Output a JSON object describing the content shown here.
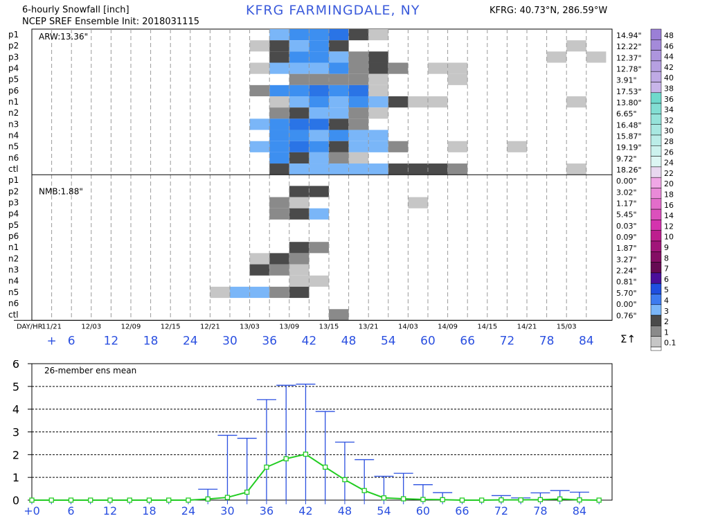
{
  "header": {
    "title_left_1": "6-hourly Snowfall [inch]",
    "title_left_2": "NCEP SREF Ensemble Init: 2018031115",
    "title_center": "KFRG FARMINGDALE, NY",
    "title_right": "KFRG: 40.73°N, 286.59°W"
  },
  "chart_data": [
    {
      "type": "heatmap",
      "title": "6-hourly Snowfall [inch]",
      "groups": [
        {
          "label": "ARW:13.36\"",
          "members": [
            "p1",
            "p2",
            "p3",
            "p4",
            "p5",
            "p6",
            "n1",
            "n2",
            "n3",
            "n4",
            "n5",
            "n6",
            "ctl"
          ]
        },
        {
          "label": "NMB:1.88\"",
          "members": [
            "p1",
            "p2",
            "p3",
            "p4",
            "p5",
            "p6",
            "n1",
            "n2",
            "n3",
            "n4",
            "n5",
            "n6",
            "ctl"
          ]
        }
      ],
      "rows": [
        "p1",
        "p2",
        "p3",
        "p4",
        "p5",
        "p6",
        "n1",
        "n2",
        "n3",
        "n4",
        "n5",
        "n6",
        "ctl",
        "p1",
        "p2",
        "p3",
        "p4",
        "p5",
        "p6",
        "n1",
        "n2",
        "n3",
        "n4",
        "n5",
        "n6",
        "ctl"
      ],
      "row_totals": [
        "14.94\"",
        "12.22\"",
        "12.37\"",
        "12.78\"",
        "3.91\"",
        "17.53\"",
        "13.80\"",
        "6.65\"",
        "16.48\"",
        "15.87\"",
        "19.19\"",
        "9.72\"",
        "18.26\"",
        "0.00\"",
        "3.02\"",
        "1.17\"",
        "5.45\"",
        "0.03\"",
        "0.09\"",
        "1.87\"",
        "3.27\"",
        "2.24\"",
        "0.81\"",
        "5.70\"",
        "0.00\"",
        "0.76\""
      ],
      "col_labels_top": [
        "DAY/HR",
        "11/21",
        "12/03",
        "12/09",
        "12/15",
        "12/21",
        "13/03",
        "13/09",
        "13/15",
        "13/21",
        "14/03",
        "14/09",
        "14/15",
        "14/21",
        "15/03"
      ],
      "col_labels_bottom": [
        "+",
        "6",
        "12",
        "18",
        "24",
        "30",
        "36",
        "42",
        "48",
        "54",
        "60",
        "66",
        "72",
        "78",
        "84"
      ],
      "sum_symbol": "Σ↑",
      "colorbar": {
        "levels": [
          "48",
          "46",
          "44",
          "42",
          "40",
          "38",
          "36",
          "34",
          "32",
          "30",
          "28",
          "26",
          "24",
          "22",
          "20",
          "18",
          "16",
          "14",
          "12",
          "10",
          "9",
          "8",
          "7",
          "6",
          "5",
          "4",
          "3",
          "2",
          "1",
          "0.1"
        ],
        "colors": [
          "#9b7fd6",
          "#a48ad9",
          "#ad95dd",
          "#b6a0e1",
          "#bfaae5",
          "#c8b5e9",
          "#6fd9cc",
          "#82ded3",
          "#95e3da",
          "#a8e8e1",
          "#bbede8",
          "#ccf2ee",
          "#dcf6f3",
          "#e8d8f0",
          "#f0a7e6",
          "#e98ad8",
          "#e26dca",
          "#db50bc",
          "#d433ae",
          "#bd1f8e",
          "#a01679",
          "#840e64",
          "#660a52",
          "#4a0f9a",
          "#1f4fe0",
          "#3d7bf0",
          "#7ab6f8",
          "#4a4a4a",
          "#8a8a8a",
          "#c6c6c6",
          "#ffffff"
        ]
      },
      "cells": [
        {
          "row": 0,
          "cells": [
            [
              12,
              3
            ],
            [
              13,
              2
            ],
            [
              14,
              2
            ],
            [
              15,
              1
            ],
            [
              16,
              4
            ],
            [
              17,
              6
            ]
          ]
        },
        {
          "row": 1,
          "cells": [
            [
              11,
              6
            ],
            [
              12,
              4
            ],
            [
              13,
              3
            ],
            [
              14,
              2
            ],
            [
              15,
              4
            ],
            [
              27,
              6
            ]
          ]
        },
        {
          "row": 2,
          "cells": [
            [
              12,
              4
            ],
            [
              13,
              2
            ],
            [
              14,
              2
            ],
            [
              15,
              3
            ],
            [
              16,
              5
            ],
            [
              17,
              4
            ],
            [
              26,
              6
            ],
            [
              28,
              6
            ]
          ]
        },
        {
          "row": 3,
          "cells": [
            [
              11,
              6
            ],
            [
              12,
              3
            ],
            [
              13,
              3
            ],
            [
              14,
              3
            ],
            [
              15,
              2
            ],
            [
              16,
              5
            ],
            [
              17,
              4
            ],
            [
              18,
              5
            ],
            [
              20,
              6
            ],
            [
              21,
              6
            ]
          ]
        },
        {
          "row": 4,
          "cells": [
            [
              13,
              5
            ],
            [
              14,
              5
            ],
            [
              15,
              5
            ],
            [
              16,
              5
            ],
            [
              17,
              6
            ],
            [
              21,
              6
            ]
          ]
        },
        {
          "row": 5,
          "cells": [
            [
              11,
              5
            ],
            [
              12,
              2
            ],
            [
              13,
              2
            ],
            [
              14,
              1
            ],
            [
              15,
              2
            ],
            [
              16,
              1
            ],
            [
              17,
              6
            ]
          ]
        },
        {
          "row": 6,
          "cells": [
            [
              12,
              6
            ],
            [
              13,
              3
            ],
            [
              14,
              2
            ],
            [
              15,
              3
            ],
            [
              16,
              2
            ],
            [
              17,
              3
            ],
            [
              18,
              4
            ],
            [
              19,
              6
            ],
            [
              20,
              6
            ],
            [
              27,
              6
            ]
          ]
        },
        {
          "row": 7,
          "cells": [
            [
              12,
              5
            ],
            [
              13,
              4
            ],
            [
              14,
              3
            ],
            [
              15,
              3
            ],
            [
              16,
              5
            ],
            [
              17,
              6
            ]
          ]
        },
        {
          "row": 8,
          "cells": [
            [
              11,
              3
            ],
            [
              12,
              2
            ],
            [
              13,
              1
            ],
            [
              14,
              1
            ],
            [
              15,
              4
            ],
            [
              16,
              5
            ]
          ]
        },
        {
          "row": 9,
          "cells": [
            [
              12,
              2
            ],
            [
              13,
              2
            ],
            [
              14,
              3
            ],
            [
              15,
              2
            ],
            [
              16,
              3
            ],
            [
              17,
              3
            ]
          ]
        },
        {
          "row": 10,
          "cells": [
            [
              11,
              3
            ],
            [
              12,
              2
            ],
            [
              13,
              1
            ],
            [
              14,
              2
            ],
            [
              15,
              4
            ],
            [
              16,
              3
            ],
            [
              17,
              3
            ],
            [
              18,
              5
            ],
            [
              21,
              6
            ],
            [
              24,
              6
            ]
          ]
        },
        {
          "row": 11,
          "cells": [
            [
              12,
              2
            ],
            [
              13,
              4
            ],
            [
              14,
              3
            ],
            [
              15,
              5
            ],
            [
              16,
              6
            ]
          ]
        },
        {
          "row": 12,
          "cells": [
            [
              12,
              4
            ],
            [
              13,
              3
            ],
            [
              14,
              3
            ],
            [
              15,
              3
            ],
            [
              16,
              3
            ],
            [
              17,
              3
            ],
            [
              18,
              4
            ],
            [
              19,
              4
            ],
            [
              20,
              4
            ],
            [
              21,
              5
            ],
            [
              27,
              6
            ]
          ]
        },
        {
          "row": 14,
          "cells": [
            [
              13,
              4
            ],
            [
              14,
              4
            ]
          ]
        },
        {
          "row": 15,
          "cells": [
            [
              12,
              5
            ],
            [
              13,
              6
            ],
            [
              19,
              6
            ]
          ]
        },
        {
          "row": 16,
          "cells": [
            [
              12,
              5
            ],
            [
              13,
              4
            ],
            [
              14,
              3
            ]
          ]
        },
        {
          "row": 19,
          "cells": [
            [
              13,
              4
            ],
            [
              14,
              5
            ]
          ]
        },
        {
          "row": 20,
          "cells": [
            [
              11,
              6
            ],
            [
              12,
              4
            ],
            [
              13,
              5
            ]
          ]
        },
        {
          "row": 21,
          "cells": [
            [
              11,
              4
            ],
            [
              12,
              5
            ],
            [
              13,
              6
            ]
          ]
        },
        {
          "row": 22,
          "cells": [
            [
              13,
              6
            ],
            [
              14,
              6
            ]
          ]
        },
        {
          "row": 23,
          "cells": [
            [
              9,
              6
            ],
            [
              10,
              3
            ],
            [
              11,
              3
            ],
            [
              12,
              5
            ],
            [
              13,
              4
            ]
          ]
        },
        {
          "row": 25,
          "cells": [
            [
              15,
              5
            ]
          ]
        }
      ],
      "cell_palette": [
        "#ffffff",
        "#2a74e6",
        "#3d8ff0",
        "#7ab6f8",
        "#4a4a4a",
        "#8a8a8a",
        "#c6c6c6"
      ]
    },
    {
      "type": "line",
      "title": "26-member ens mean",
      "x": [
        0,
        3,
        6,
        9,
        12,
        15,
        18,
        21,
        24,
        27,
        30,
        33,
        36,
        39,
        42,
        45,
        48,
        51,
        54,
        57,
        60,
        63,
        66,
        69,
        72,
        75,
        78,
        81,
        84,
        87
      ],
      "y": [
        0,
        0,
        0,
        0,
        0,
        0,
        0,
        0,
        0,
        0.05,
        0.12,
        0.35,
        1.45,
        1.82,
        2.02,
        1.45,
        0.9,
        0.42,
        0.1,
        0.06,
        0.03,
        0.02,
        0,
        0,
        0.01,
        0.01,
        0.02,
        0.05,
        0.01,
        0
      ],
      "y_max": [
        0,
        0,
        0,
        0,
        0,
        0,
        0,
        0,
        0,
        0.48,
        2.85,
        2.72,
        4.42,
        5.05,
        5.1,
        3.9,
        2.55,
        1.78,
        1.05,
        1.18,
        0.68,
        0.33,
        0,
        0,
        0.2,
        0.1,
        0.32,
        0.42,
        0.35,
        0
      ],
      "xlim": [
        0,
        89
      ],
      "ylim": [
        0,
        6
      ],
      "xticks": [
        "+0",
        "6",
        "12",
        "18",
        "24",
        "30",
        "36",
        "42",
        "48",
        "54",
        "60",
        "66",
        "72",
        "78",
        "84"
      ],
      "yticks": [
        "0",
        "1",
        "2",
        "3",
        "4",
        "5",
        "6"
      ],
      "grid": "dashed horizontal",
      "colors": {
        "mean": "#22cc22",
        "spread": "#2a4fe0"
      }
    }
  ]
}
